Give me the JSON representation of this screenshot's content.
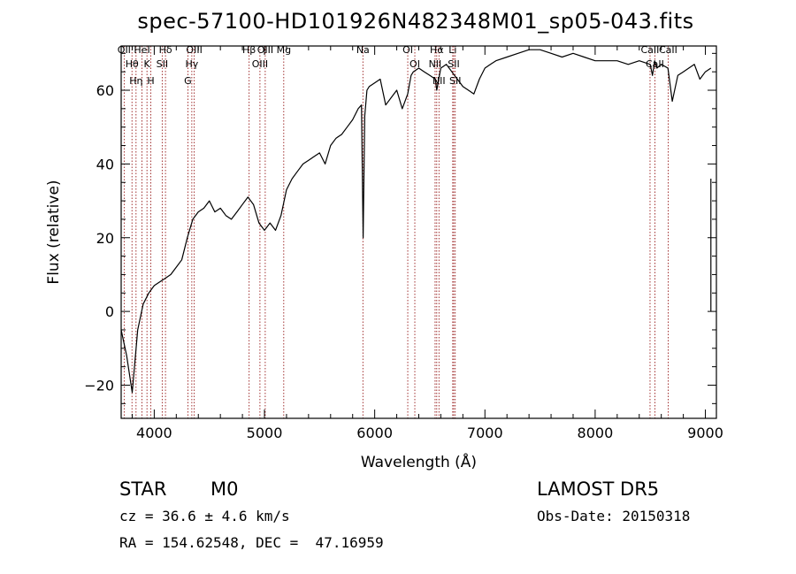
{
  "chart_data": {
    "type": "line",
    "title": "spec-57100-HD101926N482348M01_sp05-043.fits",
    "xlabel": "Wavelength (Å)",
    "ylabel": "Flux (relative)",
    "xlim": [
      3700,
      9100
    ],
    "ylim": [
      -29,
      72
    ],
    "xticks": [
      4000,
      5000,
      6000,
      7000,
      8000,
      9000
    ],
    "yticks": [
      -20,
      0,
      20,
      40,
      60
    ],
    "grid": false,
    "series": [
      {
        "x": [
          3700,
          3750,
          3800,
          3850,
          3900,
          3950,
          4000,
          4050,
          4100,
          4150,
          4200,
          4250,
          4300,
          4350,
          4400,
          4450,
          4500,
          4550,
          4600,
          4650,
          4700,
          4750,
          4800,
          4850,
          4900,
          4950,
          5000,
          5050,
          5100,
          5150,
          5200,
          5250,
          5300,
          5350,
          5400,
          5450,
          5500,
          5550,
          5600,
          5650,
          5700,
          5750,
          5800,
          5850,
          5880,
          5895,
          5910,
          5930,
          5950,
          6000,
          6050,
          6100,
          6150,
          6200,
          6250,
          6300,
          6330,
          6350,
          6400,
          6450,
          6500,
          6550,
          6563,
          6600,
          6650,
          6700,
          6750,
          6800,
          6850,
          6900,
          6950,
          7000,
          7050,
          7100,
          7200,
          7300,
          7400,
          7500,
          7600,
          7700,
          7800,
          7900,
          8000,
          8100,
          8200,
          8300,
          8400,
          8500,
          8520,
          8540,
          8560,
          8600,
          8660,
          8700,
          8750,
          8800,
          8850,
          8900,
          8950,
          9000,
          9050
        ],
        "y": [
          -5,
          -12,
          -22,
          -5,
          2,
          5,
          7,
          8,
          9,
          10,
          12,
          14,
          20,
          25,
          27,
          28,
          30,
          27,
          28,
          26,
          25,
          27,
          29,
          31,
          29,
          24,
          22,
          24,
          22,
          26,
          33,
          36,
          38,
          40,
          41,
          42,
          43,
          40,
          45,
          47,
          48,
          50,
          52,
          55,
          56,
          20,
          53,
          60,
          61,
          62,
          63,
          56,
          58,
          60,
          55,
          59,
          64,
          65,
          66,
          65,
          64,
          63,
          60,
          66,
          67,
          65,
          63,
          61,
          60,
          59,
          63,
          66,
          67,
          68,
          69,
          70,
          71,
          71,
          70,
          69,
          70,
          69,
          68,
          68,
          68,
          67,
          68,
          67,
          64,
          68,
          66,
          67,
          66,
          57,
          64,
          65,
          66,
          67,
          63,
          65,
          66
        ]
      }
    ],
    "line_markers": [
      {
        "label": "OII",
        "wavelength": 3727
      },
      {
        "label": "Hθ",
        "wavelength": 3798
      },
      {
        "label": "Hη",
        "wavelength": 3835
      },
      {
        "label": "HeI",
        "wavelength": 3889
      },
      {
        "label": "K",
        "wavelength": 3934
      },
      {
        "label": "H",
        "wavelength": 3969
      },
      {
        "label": "Hδ",
        "wavelength": 4102
      },
      {
        "label": "SII",
        "wavelength": 4072
      },
      {
        "label": "OIII",
        "wavelength": 4363
      },
      {
        "label": "Hγ",
        "wavelength": 4341
      },
      {
        "label": "G",
        "wavelength": 4305
      },
      {
        "label": "Hβ",
        "wavelength": 4861
      },
      {
        "label": "OIII",
        "wavelength": 4959
      },
      {
        "label": "OIII",
        "wavelength": 5007
      },
      {
        "label": "Mg",
        "wavelength": 5175
      },
      {
        "label": "Na",
        "wavelength": 5893
      },
      {
        "label": "OI",
        "wavelength": 6300
      },
      {
        "label": "OI",
        "wavelength": 6364
      },
      {
        "label": "Hα",
        "wavelength": 6563
      },
      {
        "label": "NII",
        "wavelength": 6548
      },
      {
        "label": "NII",
        "wavelength": 6583
      },
      {
        "label": "Li",
        "wavelength": 6708
      },
      {
        "label": "SII",
        "wavelength": 6717
      },
      {
        "label": "SII",
        "wavelength": 6731
      },
      {
        "label": "CaII",
        "wavelength": 8498
      },
      {
        "label": "CaII",
        "wavelength": 8542
      },
      {
        "label": "CaII",
        "wavelength": 8662
      }
    ]
  },
  "info": {
    "class": "STAR",
    "subclass": "M0",
    "survey": "LAMOST DR5",
    "cz": "cz = 36.6 ± 4.6 km/s",
    "obs_date": "Obs-Date: 20150318",
    "coords": "RA = 154.62548, DEC =  47.16959"
  },
  "colors": {
    "spectrum": "#000000",
    "line_markers": "#8b0000",
    "axes": "#000000"
  }
}
